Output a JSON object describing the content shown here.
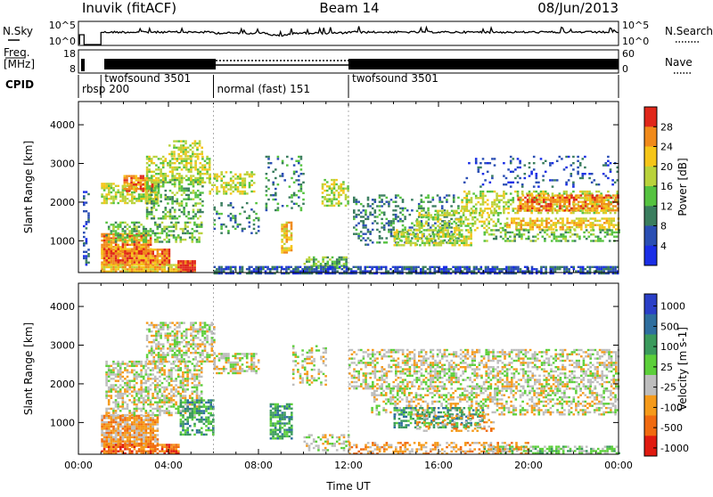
{
  "header": {
    "station": "Inuvik (fitACF)",
    "beam": "Beam 14",
    "date": "08/Jun/2013"
  },
  "summary_panels": {
    "nsky": {
      "label": "N.Sky",
      "tick_top": "10^5",
      "tick_bottom": "10^0",
      "right_label": "N.Search",
      "right_tick_top": "10^5",
      "right_tick_bottom": "10^0"
    },
    "freq": {
      "label_line1": "Freq.",
      "label_line2": "[MHz]",
      "tick_top": "18",
      "tick_bottom": "8",
      "right_label": "Nave",
      "right_tick_top": "60",
      "right_tick_bottom": "0"
    },
    "cpid": {
      "label": "CPID",
      "segments": [
        {
          "name": "rbsp 200",
          "start": 0.0,
          "end": 1.0
        },
        {
          "name": "twofsound 3501",
          "start": 1.0,
          "end": 6.0
        },
        {
          "name": "normal (fast) 151",
          "start": 6.0,
          "end": 12.0
        },
        {
          "name": "twofsound 3501",
          "start": 12.0,
          "end": 24.0
        }
      ]
    }
  },
  "chart_data": [
    {
      "type": "heatmap",
      "title": "",
      "xlabel": "",
      "ylabel": "Slant Range [km]",
      "xlim": [
        0,
        24
      ],
      "ylim": [
        180,
        4600
      ],
      "yticks": [
        1000,
        2000,
        3000,
        4000
      ],
      "colorbar": {
        "label": "Power [dB]",
        "ticks": [
          "4",
          "8",
          "12",
          "16",
          "20",
          "24",
          "28"
        ],
        "range": [
          0,
          30
        ],
        "colors": [
          "#1a2ee6",
          "#2a4eb3",
          "#3a7d5e",
          "#55c240",
          "#b9d23b",
          "#f5c518",
          "#f08a1a",
          "#e0271a"
        ]
      },
      "bands": [
        {
          "t0": 0.2,
          "t1": 0.5,
          "r0": 400,
          "r1": 2400,
          "d": 0.3,
          "lvl": 1
        },
        {
          "t0": 1.0,
          "t1": 4.0,
          "r0": 400,
          "r1": 800,
          "d": 0.95,
          "lvl": 6
        },
        {
          "t0": 1.0,
          "t1": 3.2,
          "r0": 700,
          "r1": 1200,
          "d": 0.85,
          "lvl": 6
        },
        {
          "t0": 1.2,
          "t1": 5.5,
          "r0": 1000,
          "r1": 1500,
          "d": 0.5,
          "lvl": 3
        },
        {
          "t0": 1.0,
          "t1": 3.5,
          "r0": 2000,
          "r1": 2500,
          "d": 0.7,
          "lvl": 4
        },
        {
          "t0": 2.0,
          "t1": 3.3,
          "r0": 2300,
          "r1": 2700,
          "d": 0.7,
          "lvl": 6
        },
        {
          "t0": 3.0,
          "t1": 5.8,
          "r0": 2500,
          "r1": 3200,
          "d": 0.55,
          "lvl": 4
        },
        {
          "t0": 4.0,
          "t1": 5.5,
          "r0": 3200,
          "r1": 3600,
          "d": 0.5,
          "lvl": 4
        },
        {
          "t0": 3.0,
          "t1": 5.5,
          "r0": 1600,
          "r1": 2600,
          "d": 0.4,
          "lvl": 3
        },
        {
          "t0": 4.4,
          "t1": 5.2,
          "r0": 180,
          "r1": 500,
          "d": 1.0,
          "lvl": 7
        },
        {
          "t0": 1.0,
          "t1": 4.5,
          "r0": 180,
          "r1": 400,
          "d": 0.9,
          "lvl": 5
        },
        {
          "t0": 5.8,
          "t1": 7.8,
          "r0": 2200,
          "r1": 2800,
          "d": 0.5,
          "lvl": 4
        },
        {
          "t0": 6.0,
          "t1": 8.0,
          "r0": 1200,
          "r1": 2000,
          "d": 0.2,
          "lvl": 2
        },
        {
          "t0": 8.3,
          "t1": 10.0,
          "r0": 1800,
          "r1": 3200,
          "d": 0.2,
          "lvl": 2
        },
        {
          "t0": 9.0,
          "t1": 9.5,
          "r0": 700,
          "r1": 1500,
          "d": 0.7,
          "lvl": 5
        },
        {
          "t0": 10.8,
          "t1": 12.0,
          "r0": 1900,
          "r1": 2600,
          "d": 0.5,
          "lvl": 4
        },
        {
          "t0": 10.0,
          "t1": 12.0,
          "r0": 300,
          "r1": 600,
          "d": 0.5,
          "lvl": 3
        },
        {
          "t0": 12.2,
          "t1": 17.0,
          "r0": 900,
          "r1": 2200,
          "d": 0.3,
          "lvl": 2
        },
        {
          "t0": 14.0,
          "t1": 17.5,
          "r0": 900,
          "r1": 1300,
          "d": 0.55,
          "lvl": 4
        },
        {
          "t0": 15.0,
          "t1": 19.0,
          "r0": 1300,
          "r1": 1800,
          "d": 0.45,
          "lvl": 4
        },
        {
          "t0": 17.0,
          "t1": 24.0,
          "r0": 1700,
          "r1": 2300,
          "d": 0.45,
          "lvl": 4
        },
        {
          "t0": 19.5,
          "t1": 24.0,
          "r0": 1800,
          "r1": 2200,
          "d": 0.7,
          "lvl": 6
        },
        {
          "t0": 19.0,
          "t1": 24.0,
          "r0": 1300,
          "r1": 1600,
          "d": 0.65,
          "lvl": 5
        },
        {
          "t0": 18.0,
          "t1": 24.0,
          "r0": 1000,
          "r1": 1300,
          "d": 0.4,
          "lvl": 3
        },
        {
          "t0": 17.0,
          "t1": 24.0,
          "r0": 2400,
          "r1": 3200,
          "d": 0.15,
          "lvl": 1
        },
        {
          "t0": 6.0,
          "t1": 24.0,
          "r0": 180,
          "r1": 350,
          "d": 0.75,
          "lvl": 1
        }
      ]
    },
    {
      "type": "heatmap",
      "title": "",
      "xlabel": "Time UT",
      "ylabel": "Slant Range [km]",
      "xlim": [
        0,
        24
      ],
      "ylim": [
        180,
        4600
      ],
      "xticks": [
        "00:00",
        "04:00",
        "08:00",
        "12:00",
        "16:00",
        "20:00",
        "00:00"
      ],
      "yticks": [
        1000,
        2000,
        3000,
        4000
      ],
      "colorbar": {
        "label": "Velocity [m s-1]",
        "ticks": [
          "1000",
          "500",
          "100",
          "25",
          "-25",
          "-100",
          "-500",
          "-1000"
        ],
        "colors": [
          "#2a3fc7",
          "#2e6e9e",
          "#3a9a5c",
          "#5ccf3a",
          "#bdbdbd",
          "#f59a1a",
          "#f06a10",
          "#e01a10"
        ]
      },
      "bands": [
        {
          "t0": 1.0,
          "t1": 3.5,
          "r0": 400,
          "r1": 1200,
          "d": 0.85,
          "lvl": 5
        },
        {
          "t0": 1.0,
          "t1": 4.5,
          "r0": 180,
          "r1": 450,
          "d": 0.8,
          "lvl": 6
        },
        {
          "t0": 1.2,
          "t1": 5.5,
          "r0": 1200,
          "r1": 2600,
          "d": 0.55,
          "lvl": 4
        },
        {
          "t0": 3.0,
          "t1": 6.0,
          "r0": 2600,
          "r1": 3600,
          "d": 0.55,
          "lvl": 4
        },
        {
          "t0": 4.5,
          "t1": 6.0,
          "r0": 700,
          "r1": 1600,
          "d": 0.6,
          "lvl": 2
        },
        {
          "t0": 6.0,
          "t1": 8.0,
          "r0": 2300,
          "r1": 2800,
          "d": 0.6,
          "lvl": 4
        },
        {
          "t0": 8.5,
          "t1": 9.5,
          "r0": 600,
          "r1": 1500,
          "d": 0.7,
          "lvl": 2
        },
        {
          "t0": 9.5,
          "t1": 11.0,
          "r0": 2000,
          "r1": 3000,
          "d": 0.3,
          "lvl": 4
        },
        {
          "t0": 10.0,
          "t1": 12.0,
          "r0": 300,
          "r1": 700,
          "d": 0.4,
          "lvl": 4
        },
        {
          "t0": 12.0,
          "t1": 24.0,
          "r0": 1900,
          "r1": 2900,
          "d": 0.5,
          "lvl": 4
        },
        {
          "t0": 13.0,
          "t1": 24.0,
          "r0": 1200,
          "r1": 1900,
          "d": 0.45,
          "lvl": 4
        },
        {
          "t0": 14.0,
          "t1": 18.0,
          "r0": 900,
          "r1": 1400,
          "d": 0.5,
          "lvl": 2
        },
        {
          "t0": 15.0,
          "t1": 18.5,
          "r0": 800,
          "r1": 1200,
          "d": 0.3,
          "lvl": 5
        },
        {
          "t0": 18.0,
          "t1": 24.0,
          "r0": 180,
          "r1": 400,
          "d": 0.6,
          "lvl": 3
        },
        {
          "t0": 12.0,
          "t1": 20.0,
          "r0": 180,
          "r1": 500,
          "d": 0.4,
          "lvl": 5
        }
      ]
    }
  ]
}
